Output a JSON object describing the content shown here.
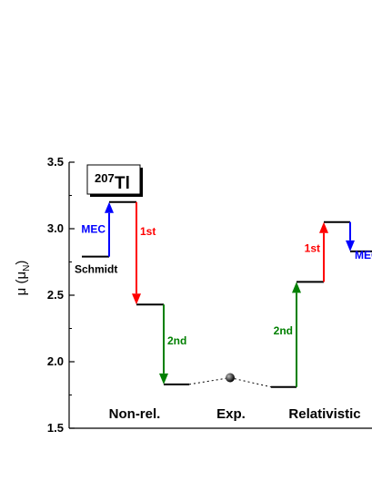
{
  "chart_data": {
    "type": "level-diagram",
    "ylabel": "μ (μ",
    "ylabel_sub": "N",
    "ylabel_close": ")",
    "ylim": [
      1.5,
      3.5
    ],
    "yticks": [
      {
        "value": 1.5,
        "label": "1.5"
      },
      {
        "value": 2.0,
        "label": "2.0"
      },
      {
        "value": 2.5,
        "label": "2.5"
      },
      {
        "value": 3.0,
        "label": "3.0"
      },
      {
        "value": 3.5,
        "label": "3.5"
      }
    ],
    "nucleus": {
      "mass": "207",
      "symbol": "Tl"
    },
    "groups": [
      {
        "name": "Non-rel."
      },
      {
        "name": "Exp."
      },
      {
        "name": "Relativistic"
      }
    ],
    "levels": [
      {
        "group": "Non-rel.",
        "step": 0,
        "value": 2.79,
        "label": "Schmidt"
      },
      {
        "group": "Non-rel.",
        "step": 1,
        "value": 3.2
      },
      {
        "group": "Non-rel.",
        "step": 2,
        "value": 2.43
      },
      {
        "group": "Non-rel.",
        "step": 3,
        "value": 1.83
      },
      {
        "group": "Exp.",
        "step": 0,
        "value": 1.88
      },
      {
        "group": "Relativistic",
        "step": 0,
        "value": 1.81
      },
      {
        "group": "Relativistic",
        "step": 1,
        "value": 2.6
      },
      {
        "group": "Relativistic",
        "step": 2,
        "value": 3.05
      },
      {
        "group": "Relativistic",
        "step": 3,
        "value": 2.83
      }
    ],
    "transitions": [
      {
        "group": "Non-rel.",
        "from": 2.79,
        "to": 3.2,
        "label": "MEC",
        "color": "#0000ff"
      },
      {
        "group": "Non-rel.",
        "from": 3.2,
        "to": 2.43,
        "label": "1st",
        "color": "#ff0000"
      },
      {
        "group": "Non-rel.",
        "from": 2.43,
        "to": 1.83,
        "label": "2nd",
        "color": "#008000"
      },
      {
        "group": "Relativistic",
        "from": 1.81,
        "to": 2.6,
        "label": "2nd",
        "color": "#008000"
      },
      {
        "group": "Relativistic",
        "from": 2.6,
        "to": 3.05,
        "label": "1st",
        "color": "#ff0000"
      },
      {
        "group": "Relativistic",
        "from": 3.05,
        "to": 2.83,
        "label": "MEC",
        "color": "#0000ff"
      }
    ],
    "experiment": {
      "value": 1.88
    },
    "grid": false,
    "legend": "none"
  }
}
